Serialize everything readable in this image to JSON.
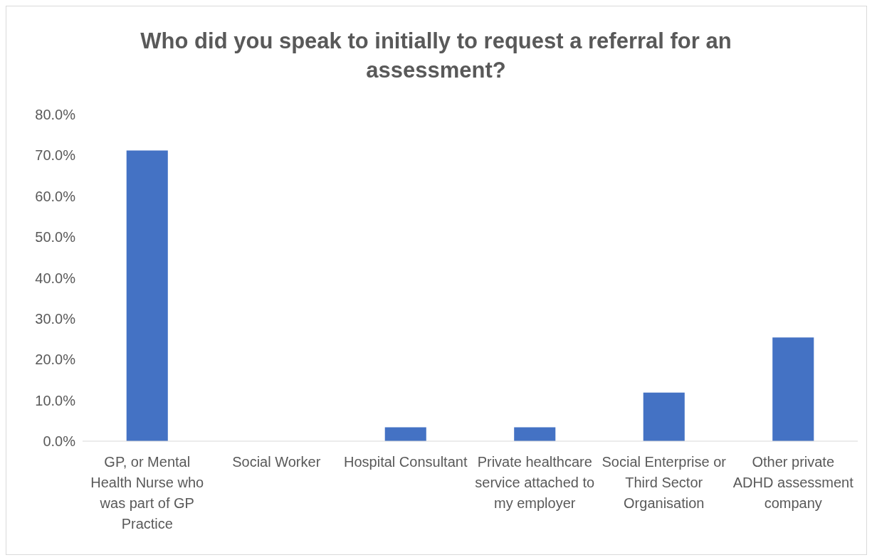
{
  "chart_data": {
    "type": "bar",
    "title": "Who did you speak to initially to request a referral for an assessment?",
    "categories": [
      "GP, or Mental Health Nurse who was part of GP Practice",
      "Social Worker",
      "Hospital Consultant",
      "Private healthcare service attached to my employer",
      "Social Enterprise or Third Sector Organisation",
      "Other private ADHD assessment company"
    ],
    "values": [
      71.2,
      0,
      3.4,
      3.4,
      11.9,
      25.4
    ],
    "color": "#4472c4",
    "ylim": [
      0,
      80
    ],
    "yticks": [
      {
        "value": 0,
        "label": "0.0%"
      },
      {
        "value": 10,
        "label": "10.0%"
      },
      {
        "value": 20,
        "label": "20.0%"
      },
      {
        "value": 30,
        "label": "30.0%"
      },
      {
        "value": 40,
        "label": "40.0%"
      },
      {
        "value": 50,
        "label": "50.0%"
      },
      {
        "value": 60,
        "label": "60.0%"
      },
      {
        "value": 70,
        "label": "70.0%"
      },
      {
        "value": 80,
        "label": "80.0%"
      }
    ],
    "grid": false
  }
}
